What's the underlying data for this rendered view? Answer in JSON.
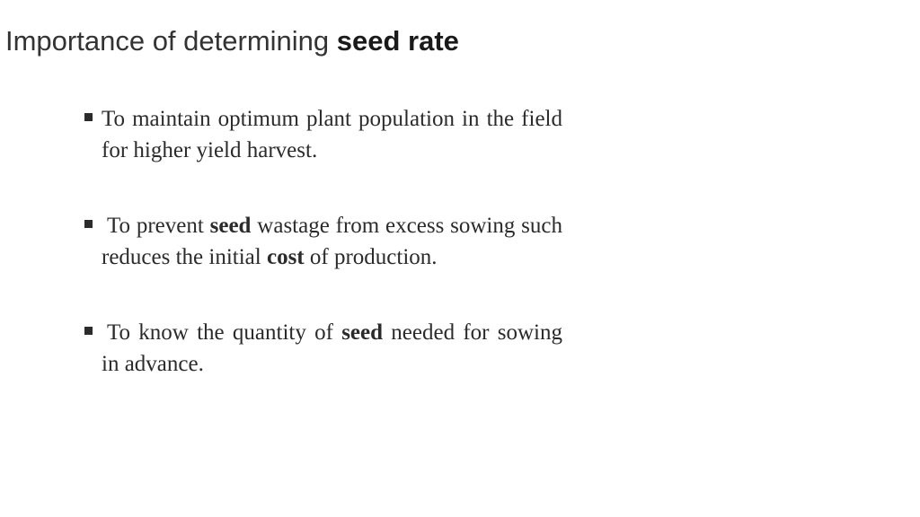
{
  "colors": {
    "background": "#ffffff",
    "title_text": "#333333",
    "body_text": "#2b2b2b",
    "bullet_square": "#2b2b2b"
  },
  "typography": {
    "title_font": "Arial",
    "title_size_pt": 23,
    "body_font": "Times New Roman",
    "body_size_pt": 19
  },
  "title_plain": "Importance of determining ",
  "title_bold": "seed rate",
  "bullets": [
    {
      "leading_space": false,
      "segments": [
        {
          "text": "To maintain optimum plant population in the field for higher yield harvest.",
          "bold": false
        }
      ]
    },
    {
      "leading_space": true,
      "segments": [
        {
          "text": "To prevent ",
          "bold": false
        },
        {
          "text": "seed",
          "bold": true
        },
        {
          "text": " wastage from excess sowing such reduces the initial ",
          "bold": false
        },
        {
          "text": "cost",
          "bold": true
        },
        {
          "text": " of production.",
          "bold": false
        }
      ]
    },
    {
      "leading_space": true,
      "segments": [
        {
          "text": "To know the quantity of ",
          "bold": false
        },
        {
          "text": "seed",
          "bold": true
        },
        {
          "text": " needed for sowing in advance.",
          "bold": false
        }
      ]
    }
  ]
}
